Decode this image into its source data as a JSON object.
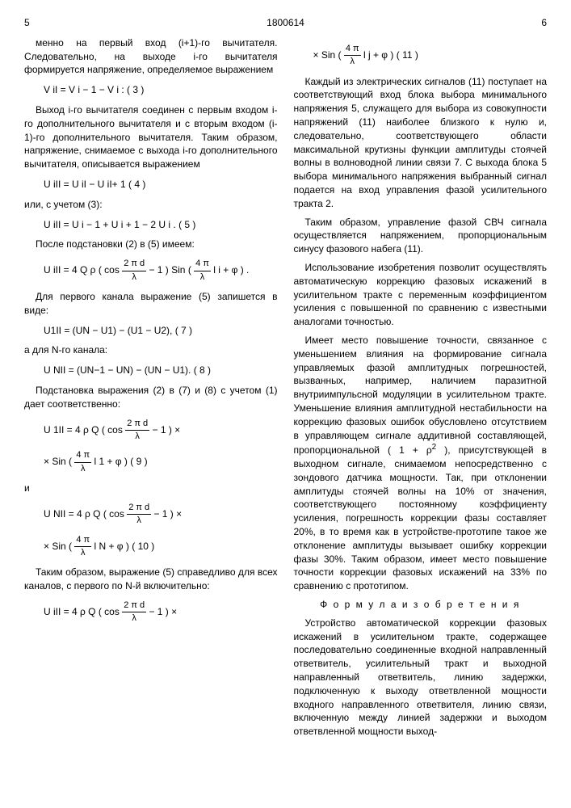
{
  "header": {
    "left_page": "5",
    "doc_number": "1800614",
    "right_page": "6"
  },
  "left": {
    "p1": "менно на первый вход (i+1)-го вычитателя. Следовательно, на выходе i-го вычитателя формируется напряжение, определяемое выражением",
    "f3": "V iI = V i − 1 − V i :   ( 3 )",
    "p2": "Выход i-го вычитателя соединен с первым входом i-го дополнительного вычитателя и с вторым входом (i-1)-го дополнительного вычитателя. Таким образом, напряжение, снимаемое с выхода i-го дополнительного вычитателя, описывается выражением",
    "f4": "U iII = U iI − U iI+ 1   ( 4 )",
    "p3": "или, с учетом (3):",
    "f5": "U iII = U i − 1 + U i + 1 − 2 U i .   ( 5 )",
    "p4": "После подстановки (2) в (5) имеем:",
    "f6_pre": "U iII = 4 Q ρ ( cos ",
    "f6_frac_num": "2 π d",
    "f6_frac_den": "λ",
    "f6_post": " − 1 ) Sin ( ",
    "f6b_frac_num": "4 π",
    "f6b_frac_den": "λ",
    "f6b_post": " l i + φ ) .",
    "p5": "Для первого канала выражение (5) запишется в виде:",
    "f7": "U1II = (UN − U1) − (U1 − U2),    ( 7 )",
    "p6": "а для N-го канала:",
    "f8": "U NII = (UN−1 − UN) − (UN − U1).   ( 8 )",
    "p7": "Подстановка выражения (2) в (7) и (8) с учетом (1) дает соответственно:",
    "f9_pre": "U 1II = 4 ρ Q ( cos ",
    "f9_post": " − 1 )  ×",
    "f9b_pre": "×   Sin ( ",
    "f9b_post": " l 1 + φ )    ( 9 )",
    "p8": "и",
    "f10_pre": "U NII = 4 ρ Q ( cos ",
    "f10_post": " − 1 )  ×",
    "f10b_pre": "×   Sin ( ",
    "f10b_post": " l N + φ )    ( 10 )",
    "p9": "Таким образом, выражение (5) справедливо для всех каналов, с первого по N-й включительно:",
    "f11_pre": "U iII = 4 ρ Q ( cos ",
    "f11_post": " − 1 )  ×"
  },
  "right": {
    "f11b_pre": "×  Sin ( ",
    "f11b_post": " l j + φ )    ( 11 )",
    "p1": "Каждый из электрических сигналов (11) поступает на соответствующий вход блока выбора минимального напряжения 5, служащего для выбора из совокупности напряжений (11) наиболее близкого к нулю и, следовательно, соответствующего области максимальной крутизны функции амплитуды стоячей волны в волноводной линии связи 7. С выхода блока 5 выбора минимального напряжения выбранный сигнал подается на вход управления фазой усилительного тракта 2.",
    "p2": "Таким образом, управление фазой СВЧ сигнала осуществляется напряжением, пропорциональным синусу фазового набега (11).",
    "p3": "Использование изобретения позволит осуществлять автоматическую коррекцию фазовых искажений в усилительном тракте с переменным коэффициентом усиления с повышенной по сравнению с известными аналогами точностью.",
    "p4a": "Имеет место повышение точности, связанное с уменьшением влияния на формирование сигнала управляемых фазой амплитудных погрешностей, вызванных, например, наличием паразитной внутриимпульсной модуляции в усилительном тракте. Уменьшение влияния амплитудной нестабильности на коррекцию фазовых ошибок обусловлено отсутствием в управляющем сигнале аддитивной составляющей, пропорциональной ( 1 + ρ",
    "p4b": " ), присутствующей в выходном сигнале, снимаемом непосредственно с зондового датчика мощности. Так, при отклонении амплитуды стоячей волны на 10% от значения, соответствующего постоянному коэффициенту усиления, погрешность коррекции фазы составляет 20%, в то время как в устройстве-прототипе такое же отклонение амплитуды вызывает ошибку коррекции фазы 30%. Таким образом, имеет место повышение точности коррекции фазовых искажений на 33% по сравнению с прототипом.",
    "claim_title": "Ф о р м у л а  и з о б р е т е н и я",
    "p5": "Устройство автоматической коррекции фазовых искажений в усилительном тракте, содержащее последовательно соединенные входной направленный ответвитель, усилительный тракт и выходной направленный ответвитель, линию задержки, подключенную к выходу ответвленной мощности входного направленного ответвителя, линию связи, включенную между линией задержки и выходом ответвленной мощности выход-"
  },
  "line_marks": [
    "5",
    "10",
    "15",
    "20",
    "25",
    "30",
    "35",
    "40",
    "45",
    "50",
    "55"
  ],
  "style": {
    "font_size_body": 12,
    "font_size_formula": 12,
    "text_color": "#000000",
    "background": "#ffffff"
  }
}
